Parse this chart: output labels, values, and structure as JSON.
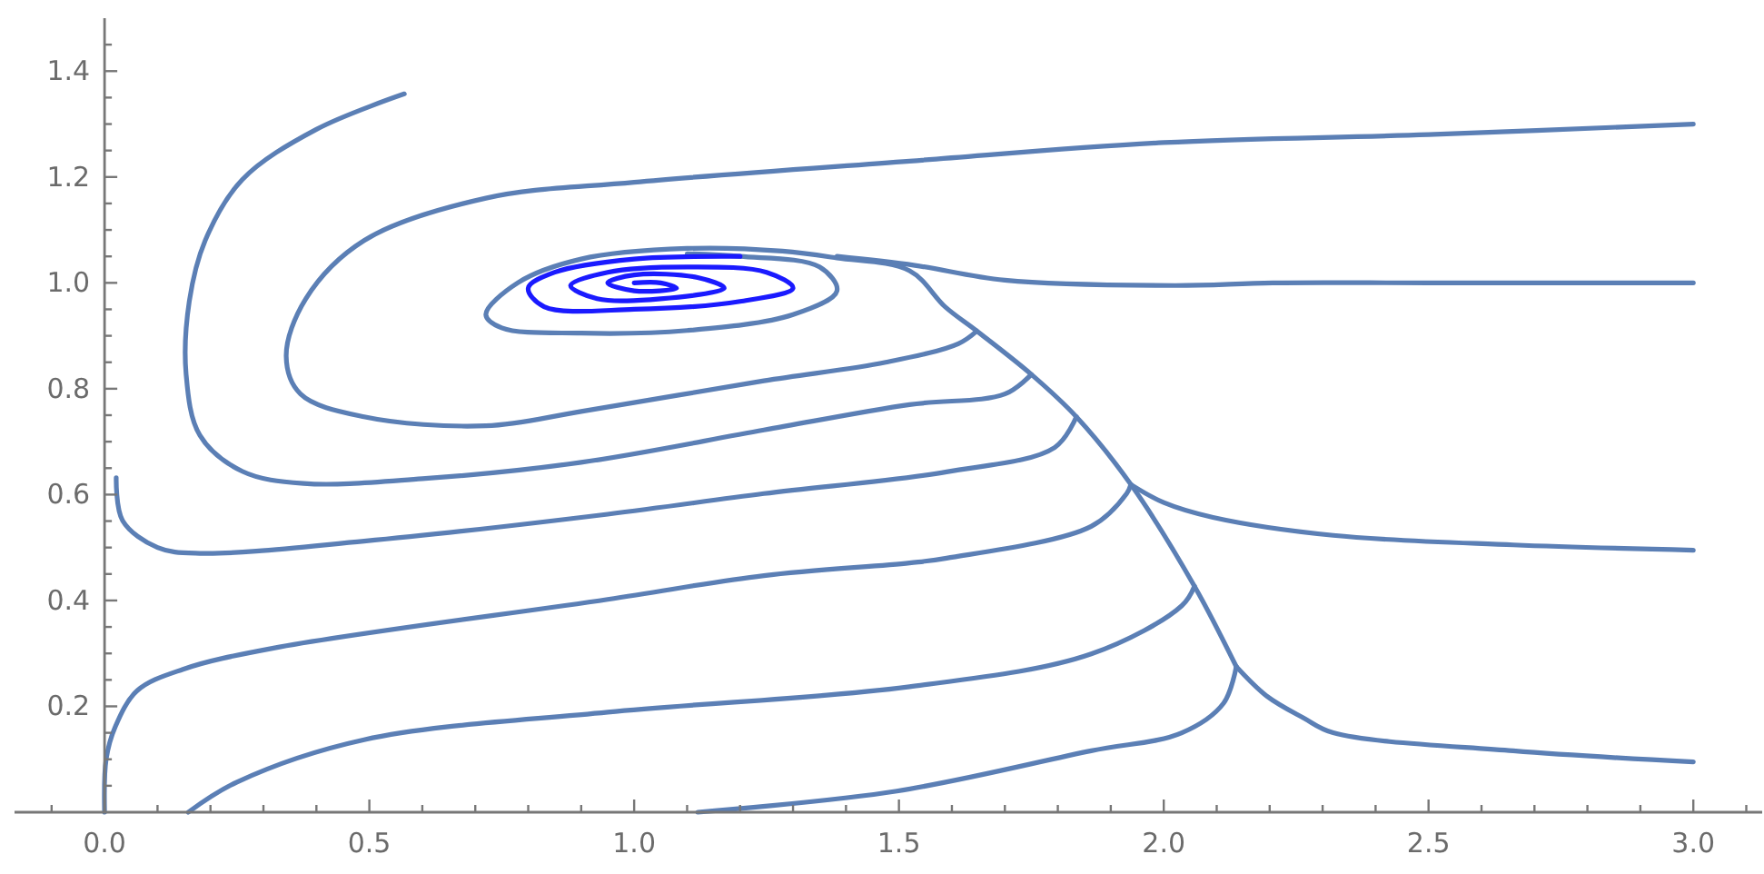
{
  "chart_data": {
    "type": "line",
    "xlim": [
      -0.17,
      3.13
    ],
    "ylim": [
      0,
      1.5
    ],
    "xticks": [
      {
        "value": -0.1,
        "label": null
      },
      "0.0",
      {
        "value": 0.1,
        "label": null
      },
      {
        "value": 0.2,
        "label": null
      },
      {
        "value": 0.3,
        "label": null
      },
      {
        "value": 0.4,
        "label": null
      },
      {
        "value": 0.5,
        "label": "0.5"
      },
      {
        "value": 0.6,
        "label": null
      },
      {
        "value": 0.7,
        "label": null
      },
      {
        "value": 0.8,
        "label": null
      },
      {
        "value": 0.9,
        "label": null
      },
      {
        "value": 1.0,
        "label": "1.0"
      },
      {
        "value": 1.1,
        "label": null
      },
      {
        "value": 1.2,
        "label": null
      },
      {
        "value": 1.3,
        "label": null
      },
      {
        "value": 1.4,
        "label": null
      },
      {
        "value": 1.5,
        "label": "1.5"
      },
      {
        "value": 1.6,
        "label": null
      },
      {
        "value": 1.7,
        "label": null
      },
      {
        "value": 1.8,
        "label": null
      },
      {
        "value": 1.9,
        "label": null
      },
      {
        "value": 2.0,
        "label": "2.0"
      },
      {
        "value": 2.1,
        "label": null
      },
      {
        "value": 2.2,
        "label": null
      },
      {
        "value": 2.3,
        "label": null
      },
      {
        "value": 2.4,
        "label": null
      },
      {
        "value": 2.5,
        "label": "2.5"
      },
      {
        "value": 2.6,
        "label": null
      },
      {
        "value": 2.7,
        "label": null
      },
      {
        "value": 2.8,
        "label": null
      },
      {
        "value": 2.9,
        "label": null
      },
      {
        "value": 3.0,
        "label": "3.0"
      },
      {
        "value": 3.1,
        "label": null
      }
    ],
    "yticks": [
      {
        "value": 0.05,
        "label": null
      },
      {
        "value": 0.1,
        "label": null
      },
      {
        "value": 0.15,
        "label": null
      },
      {
        "value": 0.2,
        "label": "0.2"
      },
      {
        "value": 0.25,
        "label": null
      },
      {
        "value": 0.3,
        "label": null
      },
      {
        "value": 0.35,
        "label": null
      },
      {
        "value": 0.4,
        "label": "0.4"
      },
      {
        "value": 0.45,
        "label": null
      },
      {
        "value": 0.5,
        "label": null
      },
      {
        "value": 0.55,
        "label": null
      },
      {
        "value": 0.6,
        "label": "0.6"
      },
      {
        "value": 0.65,
        "label": null
      },
      {
        "value": 0.7,
        "label": null
      },
      {
        "value": 0.75,
        "label": null
      },
      {
        "value": 0.8,
        "label": "0.8"
      },
      {
        "value": 0.85,
        "label": null
      },
      {
        "value": 0.9,
        "label": null
      },
      {
        "value": 0.95,
        "label": null
      },
      {
        "value": 1.0,
        "label": "1.0"
      },
      {
        "value": 1.05,
        "label": null
      },
      {
        "value": 1.1,
        "label": null
      },
      {
        "value": 1.15,
        "label": null
      },
      {
        "value": 1.2,
        "label": "1.2"
      },
      {
        "value": 1.25,
        "label": null
      },
      {
        "value": 1.3,
        "label": null
      },
      {
        "value": 1.35,
        "label": null
      },
      {
        "value": 1.4,
        "label": "1.4"
      },
      {
        "value": 1.45,
        "label": null
      }
    ],
    "grid": false,
    "marker": "none",
    "line_style": "solid",
    "series": [
      {
        "color": "#5b7fb5",
        "x": [
          3.0,
          2.5,
          2.0,
          1.52,
          1.0,
          0.72,
          0.49,
          0.38,
          0.343,
          0.37,
          0.49,
          0.72,
          0.9,
          1.245,
          1.475,
          1.612,
          1.647
        ],
        "values": [
          1.3,
          1.28,
          1.265,
          1.23,
          1.19,
          1.16,
          1.08,
          0.97,
          0.861,
          0.79,
          0.747,
          0.73,
          0.757,
          0.815,
          0.85,
          0.885,
          0.909
        ]
      },
      {
        "color": "#5b7fb5",
        "x": [
          0.566,
          0.4,
          0.26,
          0.19,
          0.16,
          0.154,
          0.18,
          0.26,
          0.376,
          0.6,
          0.9,
          1.245,
          1.52,
          1.7,
          1.75
        ],
        "values": [
          1.357,
          1.29,
          1.195,
          1.08,
          0.965,
          0.827,
          0.712,
          0.644,
          0.621,
          0.63,
          0.661,
          0.722,
          0.77,
          0.79,
          0.827
        ]
      },
      {
        "color": "#5b7fb5",
        "x": [
          0.022,
          0.034,
          0.1,
          0.18,
          0.49,
          0.95,
          1.245,
          1.59,
          1.794,
          1.835
        ],
        "values": [
          0.632,
          0.551,
          0.5,
          0.489,
          0.512,
          0.563,
          0.602,
          0.643,
          0.689,
          0.747
        ]
      },
      {
        "color": "#5b7fb5",
        "x": [
          0.0,
          0.003,
          0.02,
          0.062,
          0.148,
          0.319,
          0.95,
          1.245,
          1.52,
          1.59,
          1.863,
          1.93,
          1.938
        ],
        "values": [
          0.0,
          0.1,
          0.161,
          0.23,
          0.27,
          0.31,
          0.402,
          0.447,
          0.471,
          0.48,
          0.54,
          0.602,
          0.619
        ]
      },
      {
        "color": "#5b7fb5",
        "x": [
          0.158,
          0.25,
          0.49,
          0.95,
          1.52,
          1.863,
          2.034,
          2.058
        ],
        "values": [
          0.0,
          0.057,
          0.137,
          0.189,
          0.237,
          0.299,
          0.39,
          0.427
        ]
      },
      {
        "color": "#5b7fb5",
        "x": [
          1.12,
          1.496,
          1.863,
          2.034,
          2.113,
          2.137
        ],
        "values": [
          0.0,
          0.04,
          0.116,
          0.15,
          0.206,
          0.275
        ]
      },
      {
        "color": "#5b7fb5",
        "x": [
          3.0,
          2.66,
          2.32,
          2.093,
          2.0,
          1.938
        ],
        "values": [
          0.495,
          0.505,
          0.523,
          0.557,
          0.585,
          0.619
        ]
      },
      {
        "color": "#5b7fb5",
        "x": [
          3.0,
          2.66,
          2.32,
          2.264,
          2.195,
          2.137
        ],
        "values": [
          0.095,
          0.116,
          0.15,
          0.178,
          0.219,
          0.275
        ]
      },
      {
        "color": "#5b7fb5",
        "x": [
          3.0,
          2.5,
          2.206,
          2.02,
          1.7,
          1.53,
          1.383
        ],
        "values": [
          1.0,
          1.0,
          1.0,
          0.995,
          1.005,
          1.033,
          1.05
        ]
      },
      {
        "color": "#5b7fb5",
        "x": [
          2.137,
          2.058,
          1.938,
          1.835,
          1.75,
          1.647,
          1.588,
          1.52,
          1.383,
          1.28,
          1.1,
          0.9,
          0.78,
          0.72,
          0.75,
          0.9,
          1.1,
          1.3,
          1.383,
          1.35,
          1.2,
          1.1
        ],
        "values": [
          0.275,
          0.427,
          0.619,
          0.747,
          0.827,
          0.909,
          0.954,
          1.023,
          1.047,
          1.06,
          1.065,
          1.045,
          1.0,
          0.94,
          0.915,
          0.905,
          0.91,
          0.94,
          0.985,
          1.03,
          1.05,
          1.055
        ]
      },
      {
        "color": "#1a1aff",
        "x": [
          1.2,
          1.0,
          0.85,
          0.8,
          0.83,
          1.0,
          1.2,
          1.3,
          1.25,
          1.1,
          0.95,
          0.88,
          0.93,
          1.05,
          1.17,
          1.12,
          1.0,
          0.95,
          1.0,
          1.08,
          1.05,
          1.0
        ],
        "values": [
          1.05,
          1.045,
          1.02,
          0.99,
          0.955,
          0.95,
          0.965,
          0.99,
          1.02,
          1.03,
          1.02,
          0.995,
          0.97,
          0.97,
          0.99,
          1.01,
          1.015,
          1.0,
          0.985,
          0.99,
          1.0,
          1.0
        ]
      }
    ]
  }
}
